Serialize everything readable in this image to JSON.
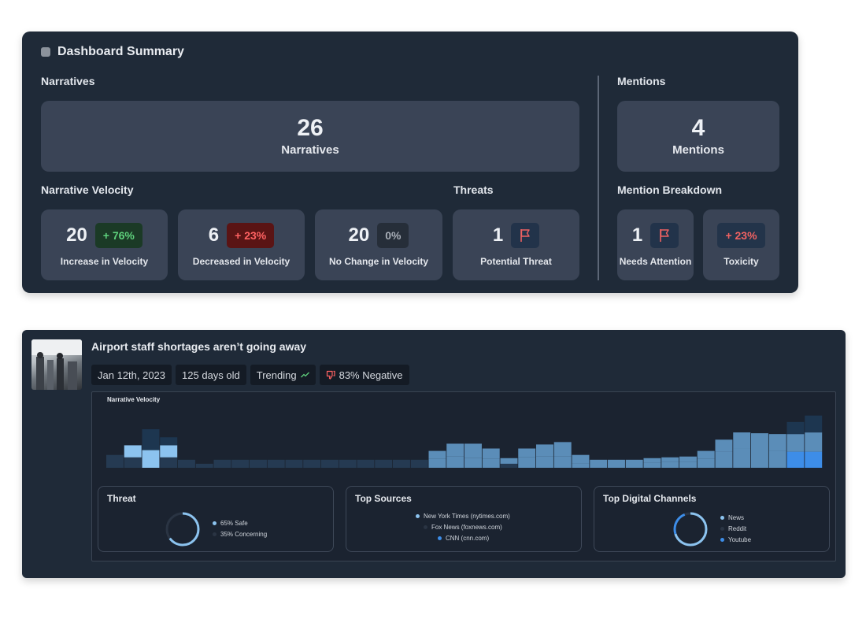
{
  "summary": {
    "title": "Dashboard Summary",
    "narratives_label": "Narratives",
    "narratives_total": {
      "value": "26",
      "label": "Narratives"
    },
    "velocity_label": "Narrative Velocity",
    "threats_label": "Threats",
    "mentions_label": "Mentions",
    "mentions_total": {
      "value": "4",
      "label": "Mentions"
    },
    "breakdown_label": "Mention Breakdown",
    "velocity": [
      {
        "value": "20",
        "badge": "+ 76%",
        "label": "Increase in Velocity"
      },
      {
        "value": "6",
        "badge": "+ 23%",
        "label": "Decreased in Velocity"
      },
      {
        "value": "20",
        "badge": "0%",
        "label": "No Change in Velocity"
      }
    ],
    "threat": {
      "value": "1",
      "label": "Potential Threat",
      "icon": "flag-icon"
    },
    "breakdown": {
      "needs_attention": {
        "value": "1",
        "label": "Needs Attention",
        "icon": "flag-icon"
      },
      "toxicity": {
        "badge": "+ 23%",
        "label": "Toxicity"
      }
    }
  },
  "narrative": {
    "title": "Airport staff shortages aren’t going away",
    "tags": {
      "date": "Jan 12th, 2023",
      "age": "125 days old",
      "trending": "Trending",
      "negative": "83% Negative"
    },
    "velocity_label": "Narrative Velocity",
    "threat": {
      "title": "Threat",
      "legend": [
        "65% Safe",
        "35% Concerning"
      ],
      "safe_fraction": 0.65
    },
    "top_sources": {
      "title": "Top Sources",
      "items": [
        "New York Times (nytimes.com)",
        "Fox News (foxnews.com)",
        "CNN  (cnn.com)"
      ]
    },
    "top_channels": {
      "title": "Top Digital Channels",
      "items": [
        "News",
        "Reddit",
        "Youtube"
      ]
    }
  },
  "colors": {
    "light_blue": "#8cc3ef",
    "mid_blue": "#5b8db8",
    "dark_bar": "#253a52",
    "bright_blue": "#3d8de8",
    "positive": "#5ed07c",
    "negative": "#ff6262"
  },
  "chart_data": {
    "type": "bar",
    "title": "Narrative Velocity",
    "stacked": true,
    "x": [
      1,
      2,
      3,
      4,
      5,
      6,
      7,
      8,
      9,
      10,
      11,
      12,
      13,
      14,
      15,
      16,
      17,
      18,
      19,
      20,
      21,
      22,
      23,
      24,
      25,
      26,
      27,
      28,
      29,
      30,
      31,
      32,
      33,
      34,
      35,
      36,
      37,
      38,
      39,
      40
    ],
    "series": [
      {
        "values": [
          0,
          0,
          2.6,
          1,
          0,
          0,
          0,
          0,
          0,
          0,
          0,
          0,
          0,
          0,
          0,
          0,
          0,
          0,
          0,
          0,
          0,
          0,
          0,
          0,
          0,
          0,
          0,
          0,
          0,
          0,
          0,
          0,
          0,
          0,
          0,
          0,
          0,
          0,
          1.5,
          2.1
        ]
      },
      {
        "values": [
          0,
          1.5,
          2.2,
          1.5,
          0,
          0,
          0,
          0,
          0,
          0,
          0,
          0,
          0,
          0,
          0,
          0,
          0,
          0,
          0,
          0,
          0,
          0,
          0,
          0,
          0,
          0,
          0,
          0,
          0,
          0,
          0,
          0,
          0,
          0,
          0,
          0,
          0,
          0,
          0,
          0
        ]
      },
      {
        "values": [
          0,
          0,
          0,
          0,
          0,
          0,
          0,
          0,
          0,
          0,
          0,
          0,
          0,
          0,
          0,
          0,
          0,
          0,
          1,
          1.6,
          1.8,
          1.3,
          0.7,
          1.1,
          1.5,
          1.8,
          1.1,
          0,
          0,
          0,
          0.6,
          0.6,
          0.7,
          1,
          1.5,
          2,
          1.8,
          2.1,
          2.2,
          2.4
        ]
      },
      {
        "values": [
          1.6,
          1.3,
          0,
          1.3,
          1,
          0.5,
          1,
          1,
          1,
          1,
          1,
          1,
          1,
          1,
          1,
          1,
          1,
          1,
          1.1,
          1.4,
          1.2,
          1.1,
          0.5,
          1.3,
          1.4,
          1.4,
          0.5,
          1,
          1,
          1,
          0.6,
          0.7,
          0.7,
          1.1,
          2,
          2.4,
          2.5,
          2.1,
          2,
          2
        ]
      }
    ]
  }
}
